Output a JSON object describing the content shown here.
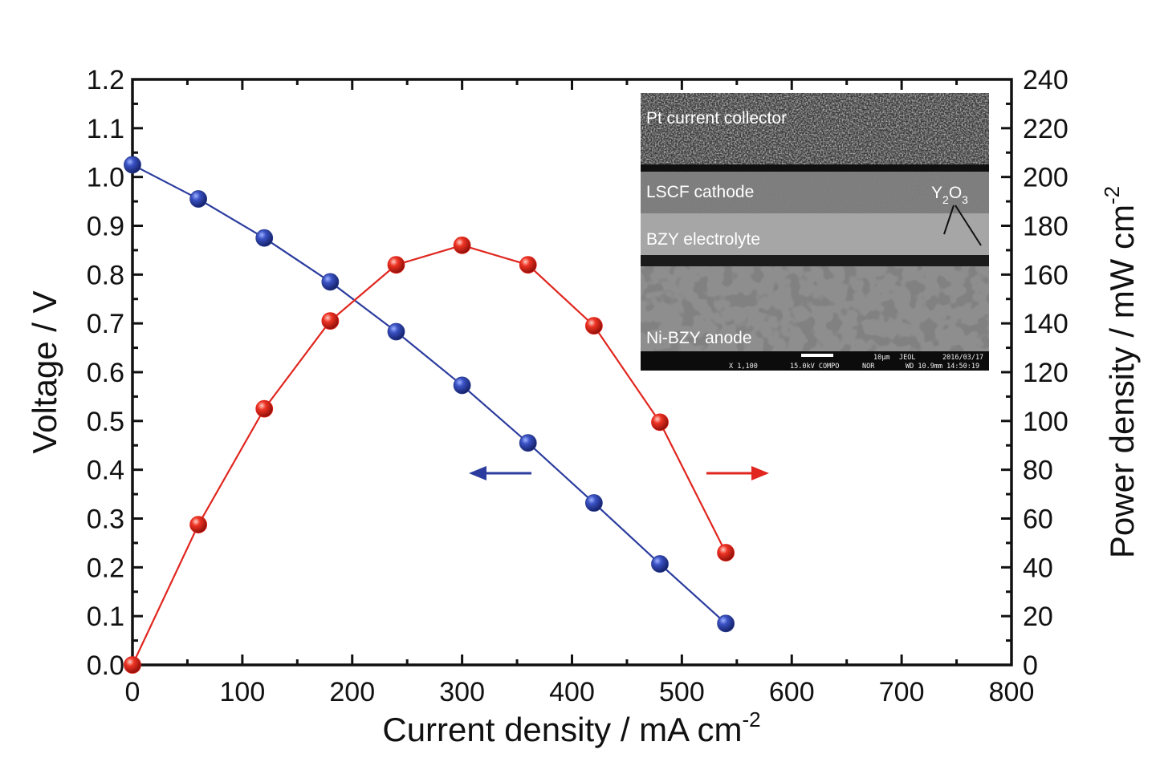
{
  "chart_data": {
    "type": "line",
    "xlabel": "Current density / mA cm",
    "xlabel_sup": "-2",
    "ylabel_left": "Voltage / V",
    "ylabel_right": "Power density / mW cm",
    "ylabel_right_sup": "-2",
    "xlim": [
      0,
      800
    ],
    "ylim_left": [
      0,
      1.2
    ],
    "ylim_right": [
      0,
      240
    ],
    "x_ticks": [
      0,
      100,
      200,
      300,
      400,
      500,
      600,
      700,
      800
    ],
    "y_left_ticks": [
      "0.0",
      "0.1",
      "0.2",
      "0.3",
      "0.4",
      "0.5",
      "0.6",
      "0.7",
      "0.8",
      "0.9",
      "1.0",
      "1.1",
      "1.2"
    ],
    "y_right_ticks": [
      0,
      20,
      40,
      60,
      80,
      100,
      120,
      140,
      160,
      180,
      200,
      220,
      240
    ],
    "grid": false,
    "series": [
      {
        "axis": "left",
        "color": "#2b3c9e",
        "marker_color": "#2a3d8f",
        "x": [
          0,
          60,
          120,
          180,
          240,
          300,
          360,
          420,
          480,
          540
        ],
        "values": [
          1.025,
          0.955,
          0.875,
          0.785,
          0.683,
          0.573,
          0.455,
          0.332,
          0.207,
          0.085
        ]
      },
      {
        "axis": "right",
        "color": "#e0261f",
        "marker_color": "#e2231a",
        "x": [
          0,
          60,
          120,
          180,
          240,
          300,
          360,
          420,
          480,
          540
        ],
        "values": [
          0,
          57.5,
          105,
          141,
          164,
          172,
          164,
          139,
          99.5,
          46
        ]
      }
    ],
    "annotations": {
      "left_arrow_color": "#2b3c9e",
      "right_arrow_color": "#e0261f"
    },
    "inset": {
      "labels": {
        "top": "Pt current collector",
        "cathode": "LSCF cathode",
        "electrolyte": "BZY electrolyte",
        "anode": "Ni-BZY anode",
        "phase": "Y",
        "phase_sub1": "2",
        "phase_o": "O",
        "phase_sub2": "3"
      },
      "meta": {
        "scale": "10μm",
        "brand": "JEOL",
        "date": "2016/03/17",
        "mag": "X 1,100",
        "kv": "15.0kV COMPO",
        "mode": "NOR",
        "wd": "WD 10.9mm 14:50:19"
      }
    }
  }
}
